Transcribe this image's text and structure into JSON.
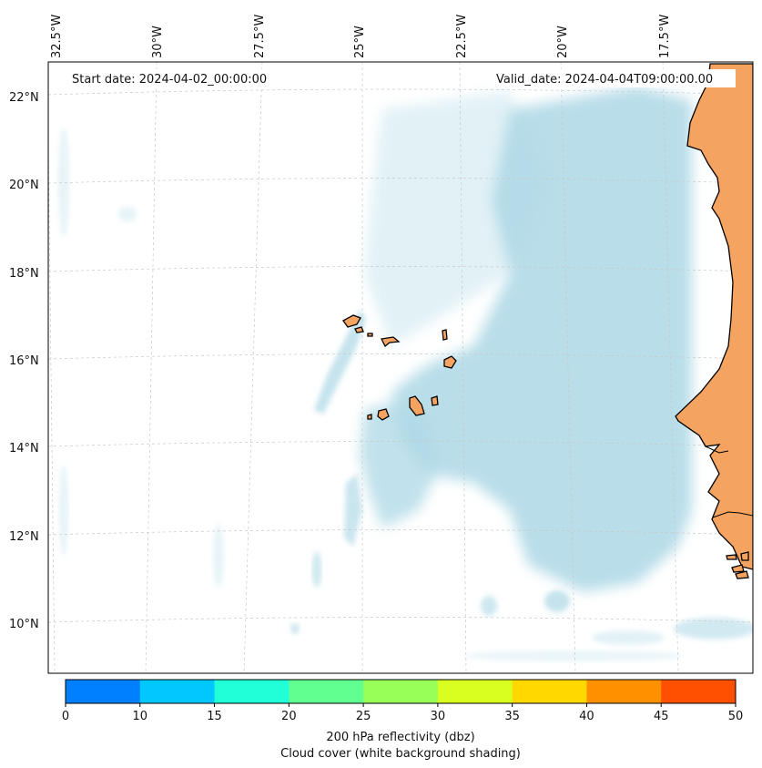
{
  "header": {
    "start_date": "Start date: 2024-04-02_00:00:00",
    "valid_date": "Valid_date: 2024-04-04T09:00:00.00"
  },
  "lon_labels": [
    "32.5°W",
    "30°W",
    "27.5°W",
    "25°W",
    "22.5°W",
    "20°W",
    "17.5°W"
  ],
  "lat_labels": [
    "22°N",
    "20°N",
    "18°N",
    "16°N",
    "14°N",
    "12°N",
    "10°N"
  ],
  "colorbar": {
    "ticks": [
      "0",
      "10",
      "15",
      "20",
      "25",
      "30",
      "35",
      "40",
      "45",
      "50"
    ],
    "colors": [
      "#0080ff",
      "#00c8ff",
      "#20ffd8",
      "#60ff90",
      "#98ff58",
      "#d8ff20",
      "#ffd800",
      "#ff9000",
      "#ff5000"
    ],
    "label_line1": "200 hPa reflectivity (dbz)",
    "label_line2": "Cloud cover (white background shading)"
  },
  "map_colors": {
    "land": "#f4a460",
    "cloud": "#add8e6",
    "grid": "#c8c8c8",
    "coast": "#000000"
  }
}
